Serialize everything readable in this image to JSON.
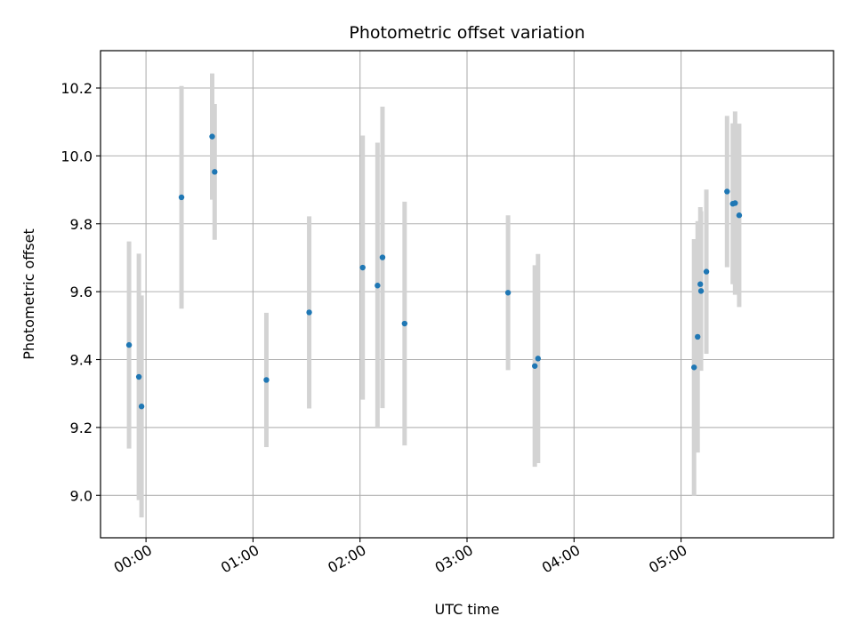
{
  "chart_data": {
    "type": "scatter",
    "title": "Photometric offset variation",
    "xlabel": "UTC time",
    "ylabel": "Photometric offset",
    "grid": true,
    "xlim_minutes": [
      -25.5,
      385.5
    ],
    "ylim": [
      8.875,
      10.31
    ],
    "xticks": [
      {
        "minutes": 0,
        "label": "00:00"
      },
      {
        "minutes": 60,
        "label": "01:00"
      },
      {
        "minutes": 120,
        "label": "02:00"
      },
      {
        "minutes": 180,
        "label": "03:00"
      },
      {
        "minutes": 240,
        "label": "04:00"
      },
      {
        "minutes": 300,
        "label": "05:00"
      }
    ],
    "yticks": [
      {
        "value": 9.0,
        "label": "9.0"
      },
      {
        "value": 9.2,
        "label": "9.2"
      },
      {
        "value": 9.4,
        "label": "9.4"
      },
      {
        "value": 9.6,
        "label": "9.6"
      },
      {
        "value": 9.8,
        "label": "9.8"
      },
      {
        "value": 10.0,
        "label": "10.0"
      },
      {
        "value": 10.2,
        "label": "10.2"
      }
    ],
    "colors": {
      "point": "#1f77b4",
      "errorbar": "#d3d3d3",
      "grid": "#b0b0b0",
      "axis": "#000000"
    },
    "points": [
      {
        "t": -9.5,
        "y": 9.443,
        "err": 0.305
      },
      {
        "t": -4.0,
        "y": 9.349,
        "err": 0.363
      },
      {
        "t": -2.5,
        "y": 9.262,
        "err": 0.327
      },
      {
        "t": 19.9,
        "y": 9.878,
        "err": 0.328
      },
      {
        "t": 37.1,
        "y": 10.057,
        "err": 0.186
      },
      {
        "t": 38.5,
        "y": 9.953,
        "err": 0.2
      },
      {
        "t": 67.5,
        "y": 9.34,
        "err": 0.198
      },
      {
        "t": 91.5,
        "y": 9.539,
        "err": 0.283
      },
      {
        "t": 121.5,
        "y": 9.671,
        "err": 0.389
      },
      {
        "t": 129.8,
        "y": 9.618,
        "err": 0.421
      },
      {
        "t": 132.6,
        "y": 9.701,
        "err": 0.444
      },
      {
        "t": 145.0,
        "y": 9.506,
        "err": 0.359
      },
      {
        "t": 203.0,
        "y": 9.597,
        "err": 0.228
      },
      {
        "t": 218.0,
        "y": 9.381,
        "err": 0.297
      },
      {
        "t": 219.8,
        "y": 9.403,
        "err": 0.308
      },
      {
        "t": 307.3,
        "y": 9.377,
        "err": 0.378
      },
      {
        "t": 309.3,
        "y": 9.467,
        "err": 0.341
      },
      {
        "t": 310.8,
        "y": 9.622,
        "err": 0.227
      },
      {
        "t": 311.2,
        "y": 9.602,
        "err": 0.235
      },
      {
        "t": 314.2,
        "y": 9.659,
        "err": 0.242
      },
      {
        "t": 325.8,
        "y": 9.895,
        "err": 0.223
      },
      {
        "t": 329.0,
        "y": 9.859,
        "err": 0.237
      },
      {
        "t": 330.3,
        "y": 9.861,
        "err": 0.27
      },
      {
        "t": 332.6,
        "y": 9.825,
        "err": 0.27
      }
    ]
  }
}
